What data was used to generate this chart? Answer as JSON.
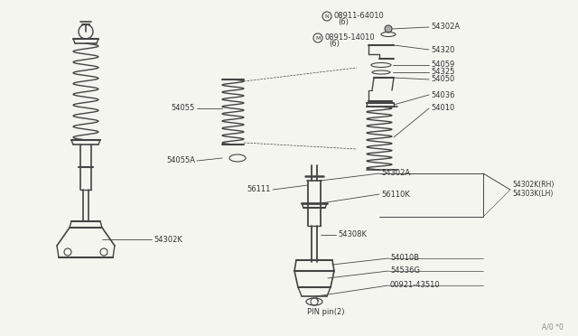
{
  "bg_color": "#f5f5f0",
  "line_color": "#444444",
  "text_color": "#333333",
  "labels": {
    "N_label": "N 08911-64010",
    "N_qty": "(6)",
    "M_label": "M 08915-14010",
    "M_qty": "(6)",
    "54302A_top": "54302A",
    "54320": "54320",
    "54059": "54059",
    "54325": "54325",
    "54050": "54050",
    "54036": "54036",
    "54010": "54010",
    "54055": "54055",
    "54055A": "54055A",
    "54302K": "54302K",
    "56111": "56111",
    "54302A_mid": "54302A",
    "56110K": "56110K",
    "54308K": "54308K",
    "54302K_RH": "54302K(RH)",
    "54303K_LH": "54303K(LH)",
    "54010B": "54010B",
    "54536G": "54536G",
    "00921": "00921-43510",
    "pin": "PIN pin(2)",
    "watermark": "A/0 *0"
  }
}
